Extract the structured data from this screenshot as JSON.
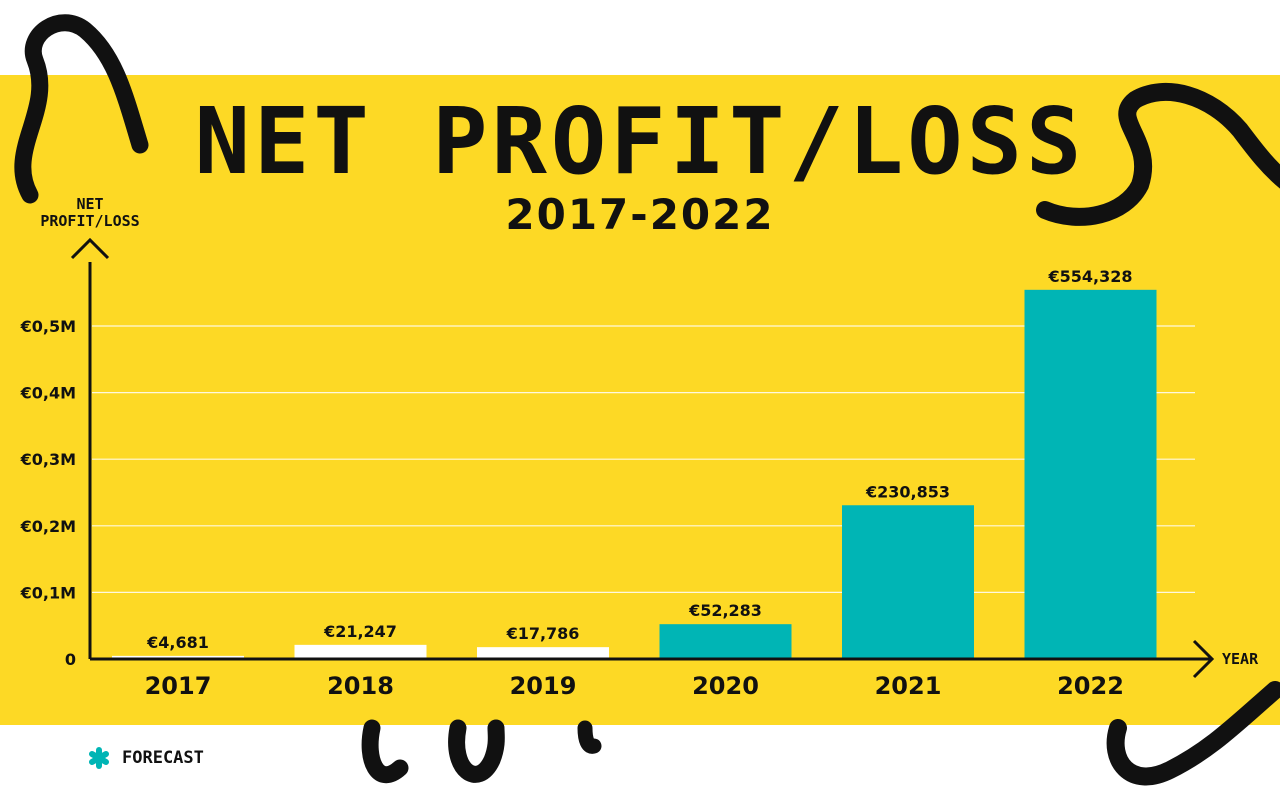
{
  "chart_data": {
    "type": "bar",
    "title": "NET PROFIT/LOSS",
    "subtitle": "2017-2022",
    "ylabel": "NET PROFIT/LOSS",
    "xlabel": "YEAR",
    "categories": [
      "2017",
      "2018",
      "2019",
      "2020",
      "2021",
      "2022"
    ],
    "values": [
      4681,
      21247,
      17786,
      52283,
      230853,
      554328
    ],
    "data_labels": [
      "€4,681",
      "€21,247",
      "€17,786",
      "€52,283",
      "€230,853",
      "€554,328"
    ],
    "forecast": [
      false,
      false,
      false,
      true,
      true,
      true
    ],
    "yticks": [
      0,
      100000,
      200000,
      300000,
      400000,
      500000
    ],
    "ytick_labels": [
      "0",
      "€0,1M",
      "€0,2M",
      "€0,3M",
      "€0,4M",
      "€0,5M"
    ],
    "ylim": [
      0,
      590000
    ],
    "grid": true,
    "colors": {
      "actual": "#ffffff",
      "forecast": "#00b5b5",
      "background": "#fdd925",
      "text": "#111111"
    },
    "legend": {
      "position": "bottom-left",
      "items": [
        {
          "label": "FORECAST",
          "icon": "asterisk-icon",
          "color": "#00b5b5"
        }
      ]
    }
  }
}
